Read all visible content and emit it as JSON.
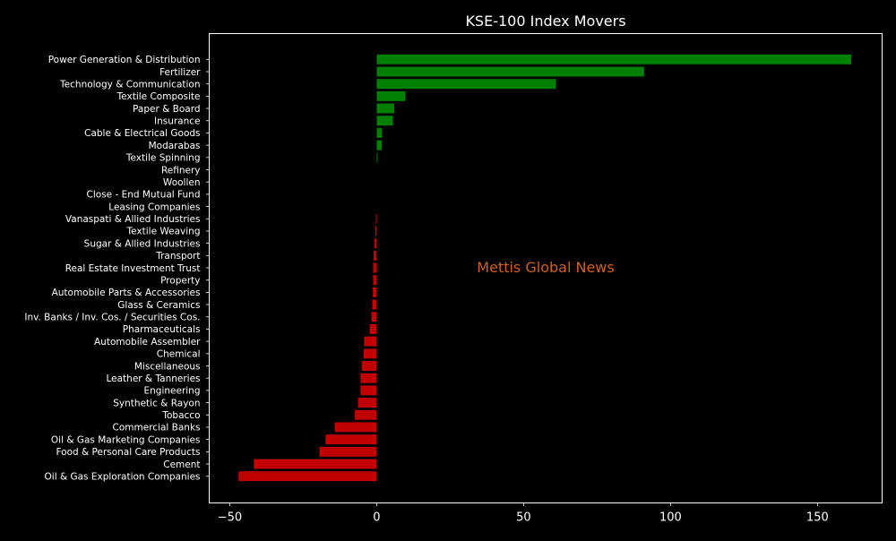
{
  "chart_data": {
    "type": "bar",
    "orientation": "horizontal",
    "title": "KSE-100 Index Movers",
    "watermark": "Mettis Global News",
    "xlabel": "",
    "ylabel": "",
    "xlim": [
      -57,
      172
    ],
    "xticks": [
      -50,
      0,
      50,
      100,
      150
    ],
    "grid": false,
    "colors": {
      "positive": "#008000",
      "negative": "#c00000",
      "background": "#000000",
      "text": "#ffffff",
      "watermark": "#c86420"
    },
    "categories": [
      "Power Generation & Distribution",
      "Fertilizer",
      "Technology & Communication",
      "Textile Composite",
      "Paper & Board",
      "Insurance",
      "Cable & Electrical Goods",
      "Modarabas",
      "Textile Spinning",
      "Refinery",
      "Woollen",
      "Close - End Mutual Fund",
      "Leasing Companies",
      "Vanaspati & Allied Industries",
      "Textile Weaving",
      "Sugar & Allied Industries",
      "Transport",
      "Real Estate Investment Trust",
      "Property",
      "Automobile Parts & Accessories",
      "Glass & Ceramics",
      "Inv. Banks / Inv. Cos. / Securities Cos.",
      "Pharmaceuticals",
      "Automobile Assembler",
      "Chemical",
      "Miscellaneous",
      "Leather & Tanneries",
      "Engineering",
      "Synthetic & Rayon",
      "Tobacco",
      "Commercial Banks",
      "Oil & Gas Marketing Companies",
      "Food & Personal Care Products",
      "Cement",
      "Oil & Gas Exploration Companies"
    ],
    "values": [
      161.5,
      91,
      61,
      9.8,
      6,
      5.5,
      1.8,
      1.7,
      0.3,
      0,
      0,
      0,
      0,
      -0.3,
      -0.5,
      -0.8,
      -1.1,
      -1.2,
      -1.2,
      -1.3,
      -1.5,
      -1.8,
      -2.4,
      -4.3,
      -4.4,
      -5.1,
      -5.5,
      -5.5,
      -6.4,
      -7.4,
      -14.3,
      -17.4,
      -19.5,
      -41.8,
      -47
    ]
  }
}
